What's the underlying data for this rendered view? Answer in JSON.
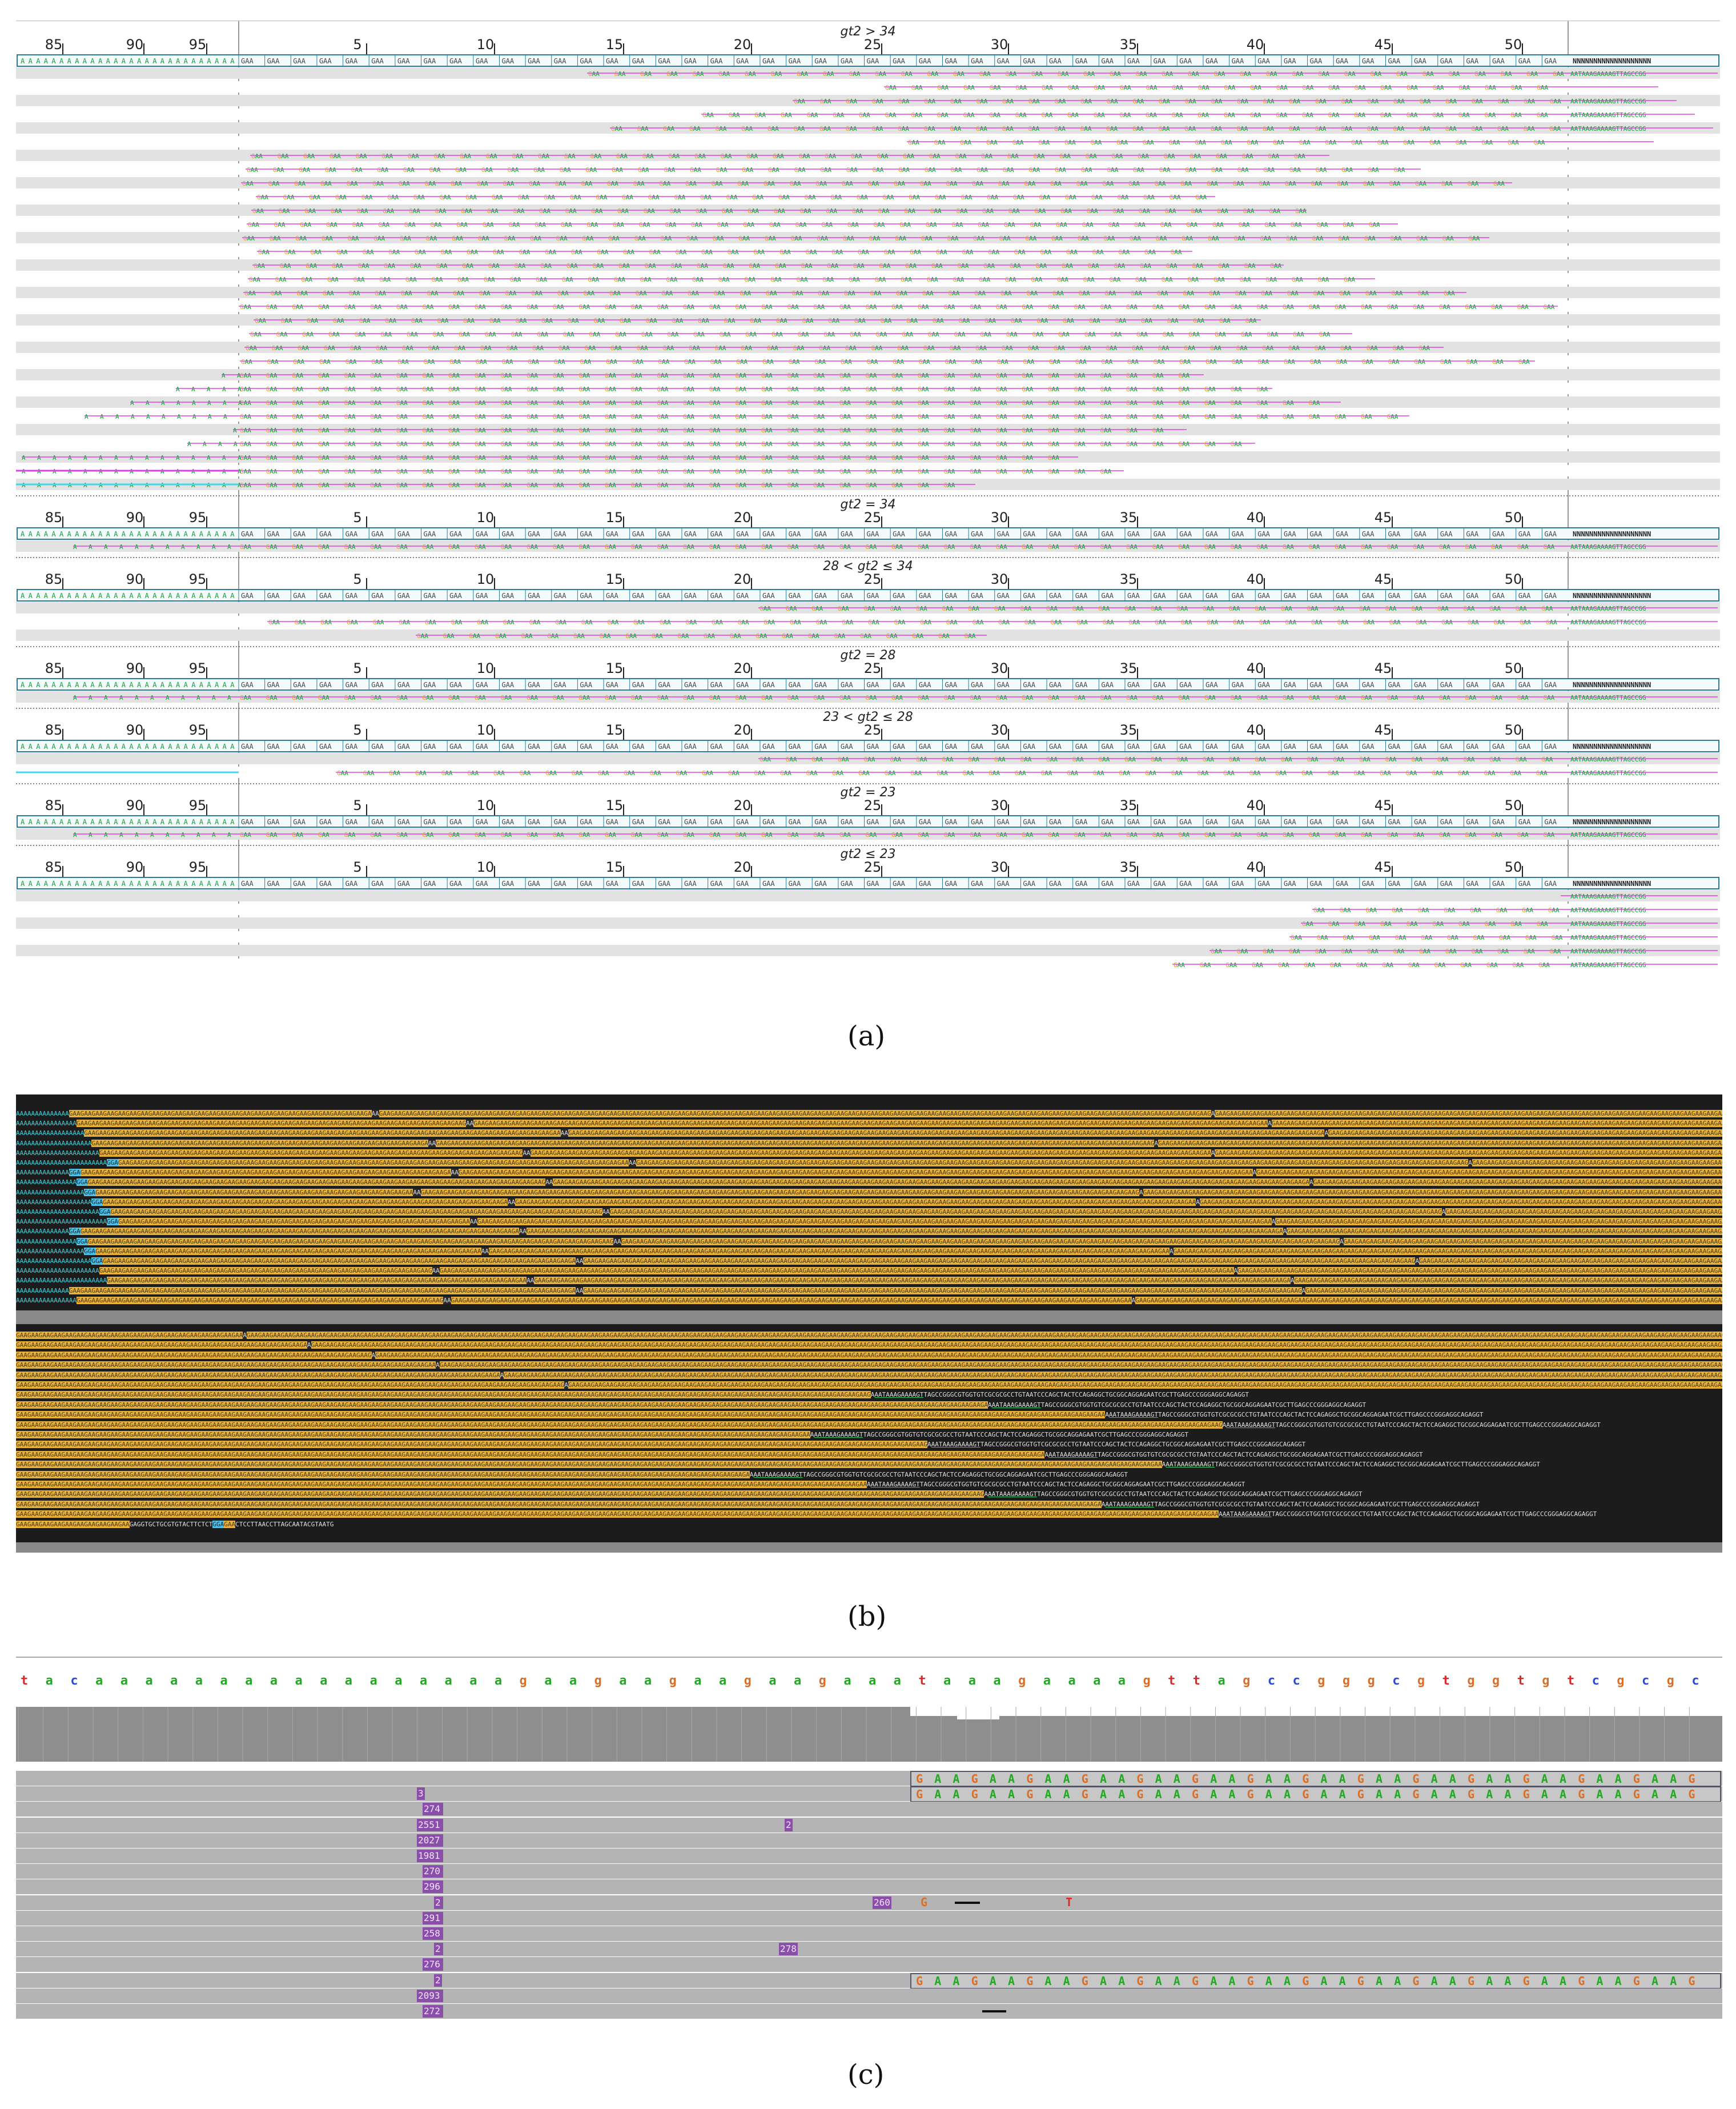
{
  "panel_a": {
    "label": "(a)",
    "ruler_ticks": [
      "85",
      "90",
      "95",
      "5",
      "10",
      "15",
      "20",
      "25",
      "30",
      "35",
      "40",
      "45",
      "50"
    ],
    "ref_left_seq": "A A A A A A A A A A A A A A A A A A A A A A A A A A A A",
    "ref_repeat_unit": "GAA",
    "ref_tail": "NNNNNNNNNNNNNNNNNNN",
    "read_tail": "AATAAAGAAAAGTTAGCCGG",
    "groups": [
      {
        "title": "gt2 > 34",
        "rows": 31
      },
      {
        "title": "gt2 = 34",
        "rows": 1
      },
      {
        "title": "28 < gt2 ≤ 34",
        "rows": 3
      },
      {
        "title": "gt2 = 28",
        "rows": 1
      },
      {
        "title": "23 < gt2 ≤ 28",
        "rows": 2
      },
      {
        "title": "gt2 = 23",
        "rows": 1
      },
      {
        "title": "gt2 ≤ 23",
        "rows": 7
      }
    ],
    "colors": {
      "A": "#1a9a3a",
      "G": "#e89a2a",
      "C": "#2a5ad8",
      "T": "#d83a3a",
      "ins": "#e040e0",
      "gap": "#40d8e8",
      "ref_box": "#2a7a9a"
    }
  },
  "panel_b": {
    "label": "(b)",
    "polyA": "AAAAAAAAAAAAAA",
    "gaa_repeat": "GAAGAAGAAGAAGAAGAAGAAGAAGAAGAAGAAGAAGAAGAAGAAGAAGAAGAAGAAGAAGAAGAAGAAGAAGAAGAAGAAGAAGAAGAAGAAGAAGAAGAAGAAGAAGAAGAAGAAGAAGAAGAAGAAGAAGAAGAAGAAGAAGAAGAAGAAGAAGAAGAAGAAGAAGAAGAAGAAGAAGAAGAAGAAGAAGAAGAAGAAGAAGAAGAAGAAGAAGAAGAAGAAGAAGAAGAAGAA",
    "cyan_unit": "GGA",
    "flank_1": "GAGGTGCTG",
    "flank_marker": "AATAAAGAAAAGT",
    "flank_downstream": "TAGCCGGGCGTGGTGTCGCGCGCCTGTAATCCCAGCTACTCCAGAGGCTGCGGCAGGAGAATCGCTTGAGCCCGGGAGGCAGAGGT",
    "last_row_flank": "GAGGTGCTGCGTGTACTTCTCT",
    "last_row_end": "CTCCTTAACCTTAGCAATACGTAATG"
  },
  "panel_c": {
    "label": "(c)",
    "ref_bases": [
      "t",
      "a",
      "c",
      "a",
      "a",
      "a",
      "a",
      "a",
      "a",
      "a",
      "a",
      "a",
      "a",
      "a",
      "a",
      "a",
      "a",
      "a",
      "a",
      "a",
      "g",
      "a",
      "a",
      "g",
      "a",
      "a",
      "g",
      "a",
      "a",
      "g",
      "a",
      "a",
      "g",
      "a",
      "a",
      "a",
      "t",
      "a",
      "a",
      "a",
      "g",
      "a",
      "a",
      "a",
      "a",
      "g",
      "t",
      "t",
      "a",
      "g",
      "c",
      "c",
      "g",
      "g",
      "g",
      "c",
      "g",
      "t",
      "g",
      "g",
      "t",
      "g",
      "t",
      "c",
      "g",
      "c",
      "g",
      "c"
    ],
    "base_colors": {
      "a": "#22aa22",
      "g": "#d8702a",
      "c": "#2a4ad8",
      "t": "#d82a2a"
    },
    "read_seq": "G A A G A A G A A G A A G A A G A A G A A G A A G A A G A A G A A G A A G A A G A A G",
    "reads": [
      {
        "ins_label": "",
        "seq": true
      },
      {
        "ins_label": "",
        "seq": true,
        "small": "3"
      },
      {
        "ins_label": "274"
      },
      {
        "ins_label": "2551",
        "extra": "2"
      },
      {
        "ins_label": "2027"
      },
      {
        "ins_label": "1981"
      },
      {
        "ins_label": "270"
      },
      {
        "ins_label": "296"
      },
      {
        "ins_label": "2",
        "extra": "260",
        "mismatch": [
          "G",
          "T"
        ]
      },
      {
        "ins_label": "291"
      },
      {
        "ins_label": "258"
      },
      {
        "ins_label": "2",
        "extra": "278"
      },
      {
        "ins_label": "276"
      },
      {
        "ins_label": "2",
        "seq": true
      },
      {
        "ins_label": "2093"
      },
      {
        "ins_label": "272"
      }
    ]
  }
}
